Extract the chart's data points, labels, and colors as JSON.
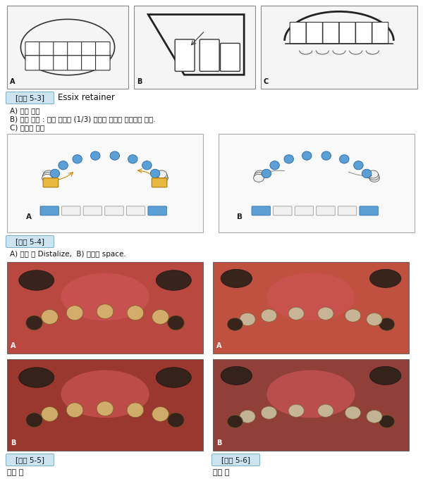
{
  "page_bg": "#e8e8e8",
  "content_bg": "#ffffff",
  "fig3_label": "[그림 5-3]",
  "fig3_title": "Essix retainer",
  "fig3_caption_a": "A) 정면 경계",
  "fig3_caption_b": "B) 측면 경계 : 견치 치경부 (1/3) 노출로 제거를 용이하게 한다.",
  "fig3_caption_c": "C) 구개면 경계",
  "fig4_label": "[그림 5-4]",
  "fig4_caption": "A) 식제 후 Distalize,  B) 확보된 space.",
  "fig5_label": "[그림 5-5]",
  "fig5_caption": "치료 전",
  "fig6_label": "[그림 5-6]",
  "fig6_caption": "치료 후",
  "label_bg": "#cce4f0",
  "label_border": "#7aaec8",
  "blue_tooth": "#5b9fd4",
  "yellow_clasp": "#e8b840",
  "photo_gum_top": "#c8504a",
  "photo_gum_mid": "#d4635a",
  "photo_tongue": "#cc5555",
  "photo_tooth_light": "#d4b878",
  "photo_tooth_dark": "#3a3028",
  "photo_bg_left_top": "#b04030",
  "photo_bg_right_top": "#c05848",
  "photo_bg_left_bot": "#9a3828",
  "photo_bg_right_bot": "#8a3020"
}
